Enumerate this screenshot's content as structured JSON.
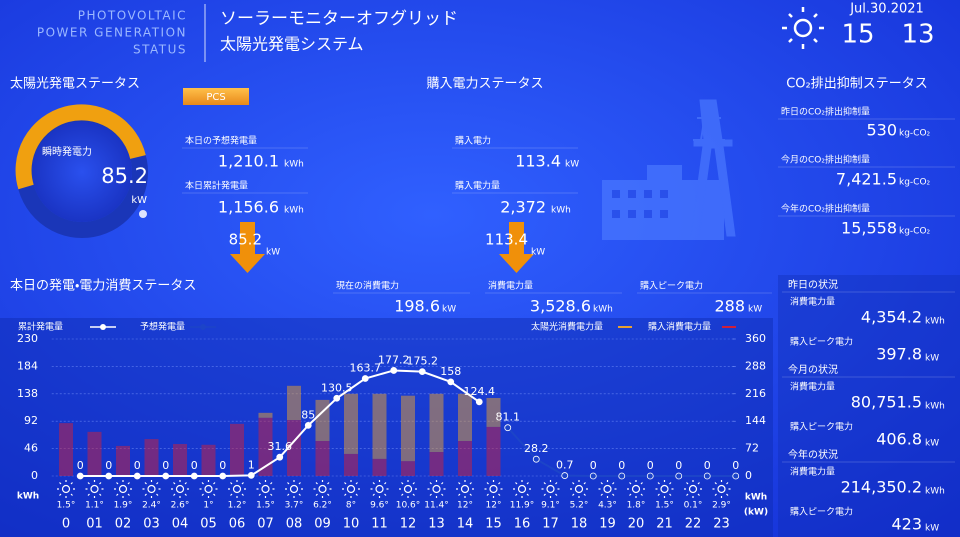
{
  "header": {
    "brand": [
      "PHOTOVOLTAIC",
      "POWER GENERATION",
      "STATUS"
    ],
    "title": "ソーラーモニターオフグリッド",
    "subtitle": "太陽光発電システム",
    "date": "Jul.30.2021",
    "hour": "15",
    "minute": "13"
  },
  "solar": {
    "title": "太陽光発電ステータス",
    "button": "PCS",
    "gauge_label": "瞬時発電力",
    "gauge_value": "85.2",
    "gauge_unit": "kW",
    "forecast_label": "本日の予想発電量",
    "forecast_value": "1,210.1",
    "forecast_unit": "kWh",
    "total_label": "本日累計発電量",
    "total_value": "1,156.6",
    "total_unit": "kWh",
    "flow_value": "85.2",
    "flow_unit": "kW"
  },
  "purchase": {
    "title": "購入電力ステータス",
    "power_label": "購入電力",
    "power_value": "113.4",
    "power_unit": "kW",
    "energy_label": "購入電力量",
    "energy_value": "2,372",
    "energy_unit": "kWh",
    "flow_value": "113.4",
    "flow_unit": "kW"
  },
  "co2": {
    "title": "CO₂排出抑制ステータス",
    "items": [
      {
        "label": "昨日のCO₂排出抑制量",
        "value": "530",
        "unit": "kg-CO₂"
      },
      {
        "label": "今月のCO₂排出抑制量",
        "value": "7,421.5",
        "unit": "kg-CO₂"
      },
      {
        "label": "今年のCO₂排出抑制量",
        "value": "15,558",
        "unit": "kg-CO₂"
      }
    ]
  },
  "consumption": {
    "title": "本日の発電・電力消費ステータス",
    "items": [
      {
        "label": "現在の消費電力",
        "value": "198.6",
        "unit": "kW"
      },
      {
        "label": "消費電力量",
        "value": "3,528.6",
        "unit": "kWh"
      },
      {
        "label": "購入ピーク電力",
        "value": "288",
        "unit": "kW"
      }
    ]
  },
  "history": [
    {
      "title": "昨日の状況",
      "energy_label": "消費電力量",
      "energy_value": "4,354.2",
      "energy_unit": "kWh",
      "peak_label": "購入ピーク電力",
      "peak_value": "397.8",
      "peak_unit": "kW"
    },
    {
      "title": "今月の状況",
      "energy_label": "消費電力量",
      "energy_value": "80,751.5",
      "energy_unit": "kWh",
      "peak_label": "購入ピーク電力",
      "peak_value": "406.8",
      "peak_unit": "kW"
    },
    {
      "title": "今年の状況",
      "energy_label": "消費電力量",
      "energy_value": "214,350.2",
      "energy_unit": "kWh",
      "peak_label": "購入ピーク電力",
      "peak_value": "423",
      "peak_unit": "kW"
    }
  ],
  "chart_data": {
    "type": "bar_line",
    "categories": [
      "0",
      "01",
      "02",
      "03",
      "04",
      "05",
      "06",
      "07",
      "08",
      "09",
      "10",
      "11",
      "12",
      "13",
      "14",
      "15",
      "16",
      "17",
      "18",
      "19",
      "20",
      "21",
      "22",
      "23"
    ],
    "temperatures": [
      "1.5°",
      "1.1°",
      "1.9°",
      "2.4°",
      "2.6°",
      "1°",
      "1.2°",
      "1.5°",
      "3.7°",
      "6.2°",
      "8°",
      "9.6°",
      "10.6°",
      "11.4°",
      "12°",
      "12°",
      "11.9°",
      "9.1°",
      "5.2°",
      "4.3°",
      "1.8°",
      "1.5°",
      "0.1°",
      "2.9°"
    ],
    "ylabel": "kWh",
    "y2label": "kWh",
    "y2unit": "(kW)",
    "ylim": [
      0,
      230
    ],
    "yticks": [
      0,
      46,
      92,
      138,
      184,
      230
    ],
    "y2lim": [
      0,
      360
    ],
    "y2ticks": [
      0,
      72,
      144,
      216,
      288,
      360
    ],
    "grid": true,
    "series": [
      {
        "name": "累計発電量",
        "type": "line",
        "color": "#ffffff",
        "values": [
          0,
          0,
          0,
          0,
          0,
          0,
          1,
          31.6,
          85,
          130.5,
          163.7,
          177.2,
          175.2,
          158,
          124.4,
          null,
          null,
          null,
          null,
          null,
          null,
          null,
          null,
          null
        ]
      },
      {
        "name": "予想発電量",
        "type": "line",
        "color": "#1c44c8",
        "values": [
          null,
          null,
          null,
          null,
          null,
          null,
          null,
          null,
          null,
          null,
          null,
          null,
          null,
          null,
          null,
          81.1,
          28.2,
          0.7,
          0,
          0,
          0,
          0,
          0,
          0
        ]
      },
      {
        "name": "太陽光消費電力量",
        "type": "bar",
        "axis": "y2",
        "color": "#e8a030",
        "values": [
          0,
          0,
          0,
          0,
          0,
          0,
          0,
          13,
          90,
          108,
          158,
          171,
          172,
          153,
          124,
          76,
          null,
          null,
          null,
          null,
          null,
          null,
          null,
          null
        ]
      },
      {
        "name": "購入消費電力量",
        "type": "bar",
        "axis": "y2",
        "color": "#d0203a",
        "values": [
          139,
          116,
          79,
          97,
          84,
          82,
          137,
          153,
          147,
          92,
          58,
          45,
          39,
          63,
          92,
          129,
          null,
          null,
          null,
          null,
          null,
          null,
          null,
          null
        ]
      }
    ]
  }
}
